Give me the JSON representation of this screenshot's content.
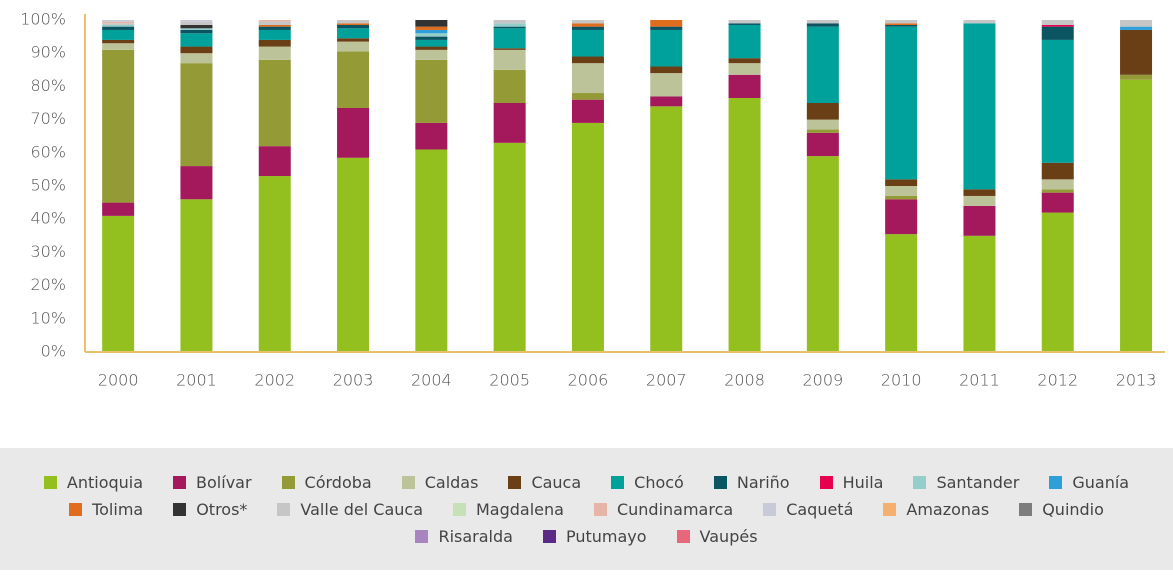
{
  "chart_data": {
    "type": "stacked_bar",
    "categories": [
      "2000",
      "2001",
      "2002",
      "2003",
      "2004",
      "2005",
      "2006",
      "2007",
      "2008",
      "2009",
      "2010",
      "2011",
      "2012",
      "2013"
    ],
    "ylim": [
      0,
      100
    ],
    "yticks": [
      {
        "value": 0,
        "label": "0%"
      },
      {
        "value": 10,
        "label": "10%"
      },
      {
        "value": 20,
        "label": "20%"
      },
      {
        "value": 30,
        "label": "30%"
      },
      {
        "value": 40,
        "label": "40%"
      },
      {
        "value": 50,
        "label": "50%"
      },
      {
        "value": 60,
        "label": "60%"
      },
      {
        "value": 70,
        "label": "70%"
      },
      {
        "value": 80,
        "label": "80%"
      },
      {
        "value": 90,
        "label": "90%"
      },
      {
        "value": 100,
        "label": "100%"
      }
    ],
    "series": [
      {
        "name": "Antioquia",
        "color": "#93c01f",
        "values": [
          41,
          46,
          53,
          58.5,
          61,
          63,
          69,
          74,
          76.5,
          59,
          35.5,
          35,
          42,
          82
        ]
      },
      {
        "name": "Bolívar",
        "color": "#a3195b",
        "values": [
          4,
          10,
          9,
          15,
          8,
          12,
          7,
          3,
          7,
          7,
          10.5,
          9,
          6,
          0
        ]
      },
      {
        "name": "Córdoba",
        "color": "#949a35",
        "values": [
          46,
          31,
          26,
          17,
          19,
          10,
          2,
          0,
          0,
          1,
          1,
          0,
          1,
          1.5
        ]
      },
      {
        "name": "Caldas",
        "color": "#bcc398",
        "values": [
          2,
          3,
          4,
          3,
          3,
          6,
          9,
          7,
          3.5,
          3,
          3,
          3,
          3,
          0
        ]
      },
      {
        "name": "Cauca",
        "color": "#6b3f16",
        "values": [
          1,
          2,
          2,
          1,
          1,
          0.5,
          2,
          2,
          1.5,
          5,
          2,
          2,
          5,
          13.5
        ]
      },
      {
        "name": "Chocó",
        "color": "#00a19a",
        "values": [
          3,
          4,
          3,
          3,
          2,
          6,
          8,
          11,
          10,
          23,
          46,
          50,
          37,
          0
        ]
      },
      {
        "name": "Nariño",
        "color": "#0b5563",
        "values": [
          1,
          1,
          1,
          1,
          1,
          0.5,
          1,
          1,
          0.5,
          1,
          0.5,
          0,
          4,
          0
        ]
      },
      {
        "name": "Huila",
        "color": "#e6004e",
        "values": [
          0,
          0,
          0,
          0,
          0,
          0,
          0,
          0,
          0,
          0,
          0,
          0,
          0.5,
          0
        ]
      },
      {
        "name": "Santander",
        "color": "#94cdc9",
        "values": [
          0.5,
          0.5,
          0,
          0,
          1,
          1,
          0,
          0,
          0,
          0,
          0,
          0,
          0,
          0
        ]
      },
      {
        "name": "Guanía",
        "color": "#2e9fd9",
        "values": [
          0,
          0,
          0,
          0,
          1,
          0,
          0,
          0,
          0,
          0,
          0,
          0,
          0,
          1
        ]
      },
      {
        "name": "Tolima",
        "color": "#e06c1e",
        "values": [
          0,
          0,
          0.5,
          0.5,
          1,
          0,
          1,
          2,
          0,
          0,
          0.5,
          0,
          0,
          0
        ]
      },
      {
        "name": "Otros*",
        "color": "#333333",
        "values": [
          0,
          1,
          0,
          0,
          2,
          0,
          0,
          0,
          0,
          0,
          0,
          0,
          0,
          0
        ]
      },
      {
        "name": "Valle del Cauca",
        "color": "#c6c6c6",
        "values": [
          0.5,
          1,
          1,
          1,
          0,
          1,
          1,
          0,
          1,
          1,
          1,
          1,
          1.5,
          2
        ]
      },
      {
        "name": "Magdalena",
        "color": "#c7e1b6",
        "values": [
          0,
          0,
          0,
          0,
          0,
          0,
          0,
          0,
          0,
          0,
          0,
          0,
          0,
          0
        ]
      },
      {
        "name": "Cundinamarca",
        "color": "#e6b5a8",
        "values": [
          0.5,
          0,
          0.5,
          0,
          0,
          0,
          0,
          0,
          0,
          0,
          0,
          0,
          0,
          0
        ]
      },
      {
        "name": "Caquetá",
        "color": "#c8cad8",
        "values": [
          0.5,
          0.5,
          0,
          0,
          0,
          0,
          0,
          0,
          0,
          0,
          0,
          0,
          0,
          0
        ]
      },
      {
        "name": "Amazonas",
        "color": "#f5b06e",
        "values": [
          0,
          0,
          0,
          0,
          0,
          0,
          0,
          0,
          0,
          0,
          0,
          0,
          0,
          0
        ]
      },
      {
        "name": "Quindio",
        "color": "#7d7d7d",
        "values": [
          0,
          0,
          0,
          0,
          0,
          0,
          0,
          0,
          0,
          0,
          0,
          0,
          0,
          0
        ]
      },
      {
        "name": "Risaralda",
        "color": "#a885c0",
        "values": [
          0,
          0,
          0,
          0,
          0,
          0,
          0,
          0,
          0,
          0,
          0,
          0,
          0,
          0
        ]
      },
      {
        "name": "Putumayo",
        "color": "#5b2a86",
        "values": [
          0,
          0,
          0,
          0,
          0,
          0,
          0,
          0,
          0,
          0,
          0,
          0,
          0,
          0
        ]
      },
      {
        "name": "Vaupés",
        "color": "#e8677a",
        "values": [
          0,
          0,
          0,
          0,
          0,
          0,
          0,
          0,
          0,
          0,
          0,
          0,
          0,
          0
        ]
      }
    ]
  }
}
